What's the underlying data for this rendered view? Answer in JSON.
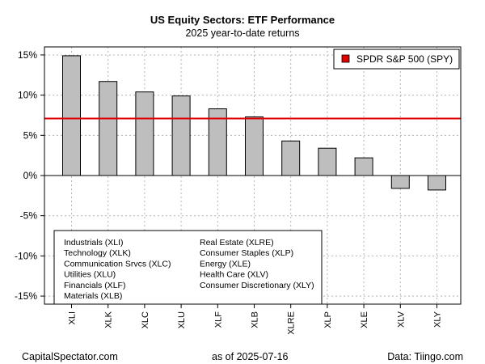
{
  "header": {
    "title": "US Equity Sectors: ETF Performance",
    "subtitle": "2025 year-to-date returns"
  },
  "footer": {
    "left": "CapitalSpectator.com",
    "middle": "as of   2025-07-16",
    "right": "Data: Tiingo.com"
  },
  "chart_data": {
    "type": "bar",
    "title": "US Equity Sectors: ETF Performance",
    "subtitle": "2025 year-to-date returns",
    "categories": [
      "XLI",
      "XLK",
      "XLC",
      "XLU",
      "XLF",
      "XLB",
      "XLRE",
      "XLP",
      "XLE",
      "XLV",
      "XLY"
    ],
    "values": [
      14.9,
      11.7,
      10.4,
      9.9,
      8.3,
      7.3,
      4.3,
      3.4,
      2.2,
      -1.6,
      -1.8
    ],
    "ylim": [
      -16,
      16
    ],
    "yticks": [
      15,
      10,
      5,
      0,
      -5,
      -10,
      -15
    ],
    "ytick_labels": [
      "15%",
      "10%",
      "5%",
      "0%",
      "-5%",
      "-10%",
      "-15%"
    ],
    "grid": true,
    "bar_color": "#bebebe",
    "reference_line": {
      "label": "SPDR S&P 500 (SPY)",
      "value": 7.1,
      "color": "#e00000"
    },
    "legend_position": "top-right",
    "key_left": [
      "Industrials (XLI)",
      "Technology (XLK)",
      "Communication Srvcs (XLC)",
      "Utilities (XLU)",
      "Financials (XLF)",
      "Materials (XLB)"
    ],
    "key_right": [
      "Real Estate (XLRE)",
      "Consumer Staples (XLP)",
      "Energy (XLE)",
      "Health Care (XLV)",
      "Consumer Discretionary (XLY)"
    ]
  }
}
